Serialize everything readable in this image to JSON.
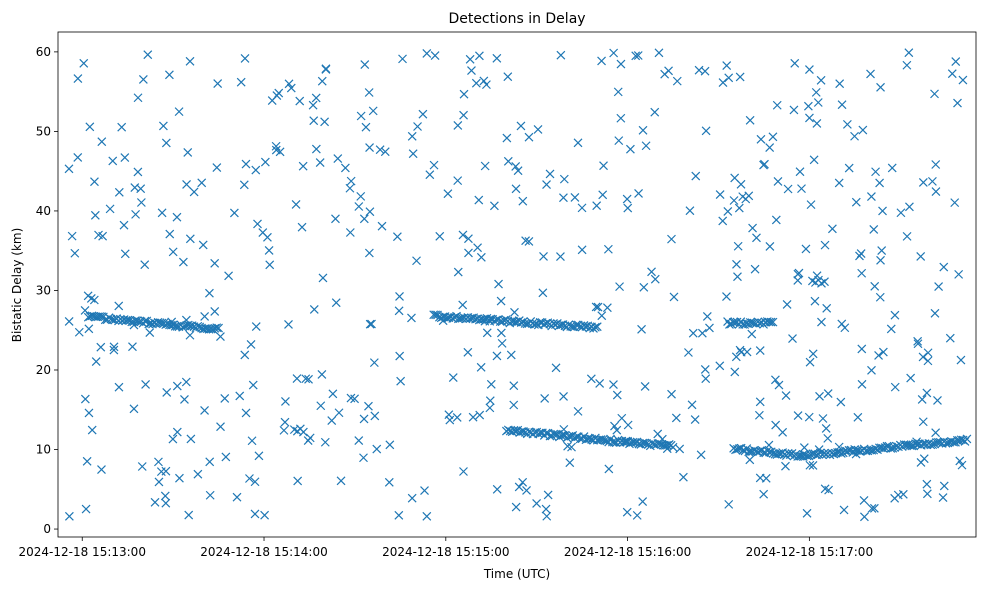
{
  "chart_data": {
    "type": "scatter",
    "title": "Detections in Delay",
    "xlabel": "Time (UTC)",
    "ylabel": "Bistatic Delay (km)",
    "marker": "x",
    "color": "#1f77b4",
    "grid": false,
    "legend": "none",
    "x_unit": "seconds after 2024-12-18 15:12:00 UTC",
    "xlim": [
      52,
      355
    ],
    "ylim": [
      -1.0,
      62.5
    ],
    "x_ticks": [
      {
        "value": 60,
        "label": "2024-12-18 15:13:00"
      },
      {
        "value": 120,
        "label": "2024-12-18 15:14:00"
      },
      {
        "value": 180,
        "label": "2024-12-18 15:15:00"
      },
      {
        "value": 240,
        "label": "2024-12-18 15:16:00"
      },
      {
        "value": 300,
        "label": "2024-12-18 15:17:00"
      }
    ],
    "y_ticks": [
      {
        "value": 0,
        "label": "0"
      },
      {
        "value": 10,
        "label": "10"
      },
      {
        "value": 20,
        "label": "20"
      },
      {
        "value": 30,
        "label": "30"
      },
      {
        "value": 40,
        "label": "40"
      },
      {
        "value": 50,
        "label": "50"
      },
      {
        "value": 60,
        "label": "60"
      }
    ],
    "x_range_data": [
      55,
      352
    ],
    "tracks": [
      {
        "x_start": 62,
        "x_end": 105,
        "y_start": 26.7,
        "y_end": 25.1
      },
      {
        "x_start": 176,
        "x_end": 230,
        "y_start": 26.8,
        "y_end": 25.3
      },
      {
        "x_start": 200,
        "x_end": 240,
        "y_start": 12.4,
        "y_end": 10.9
      },
      {
        "x_start": 240,
        "x_end": 255,
        "y_start": 10.9,
        "y_end": 10.4
      },
      {
        "x_start": 275,
        "x_end": 298,
        "y_start": 10.1,
        "y_end": 9.2
      },
      {
        "x_start": 298,
        "x_end": 352,
        "y_start": 9.2,
        "y_end": 11.2
      },
      {
        "x_start": 273,
        "x_end": 288,
        "y_start": 25.9,
        "y_end": 25.9
      }
    ],
    "cluster_points": [
      {
        "x": 301,
        "y": 31.2
      },
      {
        "x": 302,
        "y": 31.0
      },
      {
        "x": 303,
        "y": 31.3
      },
      {
        "x": 304,
        "y": 30.9
      },
      {
        "x": 305,
        "y": 31.1
      },
      {
        "x": 278,
        "y": 41.8
      },
      {
        "x": 279,
        "y": 41.5
      },
      {
        "x": 280,
        "y": 41.9
      },
      {
        "x": 130,
        "y": 12.5
      },
      {
        "x": 131,
        "y": 12.3
      },
      {
        "x": 132,
        "y": 12.6
      },
      {
        "x": 133,
        "y": 12.2
      },
      {
        "x": 63,
        "y": 29.0
      },
      {
        "x": 64,
        "y": 28.8
      }
    ],
    "scattered_points": {
      "count": 560,
      "seed": 20241218,
      "y_range": [
        1.5,
        60.0
      ]
    }
  }
}
